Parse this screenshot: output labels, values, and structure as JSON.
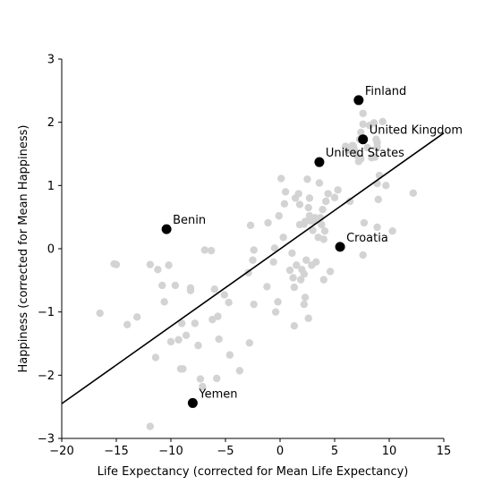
{
  "chart_data": {
    "type": "scatter",
    "title": "",
    "xlabel": "Life Expectancy (corrected for Mean Life Expectancy)",
    "ylabel": "Happiness (corrected for Mean Happiness)",
    "xlim": [
      -20,
      15
    ],
    "ylim": [
      -3,
      3
    ],
    "xticks": [
      -20,
      -15,
      -10,
      -5,
      0,
      5,
      10,
      15
    ],
    "yticks": [
      -3,
      -2,
      -1,
      0,
      1,
      2,
      3
    ],
    "grid": false,
    "colors": {
      "points": "#d3d3d3",
      "highlight": "#000000",
      "line": "#000000"
    },
    "fit_line": {
      "x": [
        -20,
        15
      ],
      "y": [
        -2.45,
        1.83
      ]
    },
    "highlighted": [
      {
        "label": "Finland",
        "x": 7.2,
        "y": 2.35
      },
      {
        "label": "United Kingdom",
        "x": 7.6,
        "y": 1.73
      },
      {
        "label": "United States",
        "x": 3.6,
        "y": 1.37
      },
      {
        "label": "Benin",
        "x": -10.4,
        "y": 0.31
      },
      {
        "label": "Croatia",
        "x": 5.5,
        "y": 0.03
      },
      {
        "label": "Yemen",
        "x": -8.0,
        "y": -2.44
      }
    ],
    "points": [
      [
        -16.5,
        -1.02
      ],
      [
        -15.2,
        -0.24
      ],
      [
        -15.0,
        -0.25
      ],
      [
        -14.0,
        -1.2
      ],
      [
        -13.1,
        -1.08
      ],
      [
        -11.9,
        -0.25
      ],
      [
        -11.9,
        -2.81
      ],
      [
        -11.4,
        -1.72
      ],
      [
        -11.2,
        -0.33
      ],
      [
        -10.8,
        -0.58
      ],
      [
        -10.6,
        -0.84
      ],
      [
        -10.2,
        -0.26
      ],
      [
        -10.0,
        -1.47
      ],
      [
        -9.6,
        -0.58
      ],
      [
        -9.3,
        -1.44
      ],
      [
        -9.1,
        -1.9
      ],
      [
        -9.0,
        -1.18
      ],
      [
        -8.9,
        -1.9
      ],
      [
        -8.6,
        -1.37
      ],
      [
        -8.2,
        -0.62
      ],
      [
        -8.2,
        -0.66
      ],
      [
        -7.8,
        -1.18
      ],
      [
        -7.5,
        -1.53
      ],
      [
        -7.3,
        -2.06
      ],
      [
        -7.1,
        -2.18
      ],
      [
        -6.9,
        -0.02
      ],
      [
        -6.3,
        -0.03
      ],
      [
        -6.2,
        -1.12
      ],
      [
        -6.0,
        -0.64
      ],
      [
        -5.8,
        -2.05
      ],
      [
        -5.7,
        -1.07
      ],
      [
        -5.6,
        -1.43
      ],
      [
        -5.1,
        -0.73
      ],
      [
        -4.7,
        -0.85
      ],
      [
        -4.6,
        -1.68
      ],
      [
        -3.7,
        -1.93
      ],
      [
        -2.9,
        -0.38
      ],
      [
        -2.8,
        -1.49
      ],
      [
        -2.7,
        0.37
      ],
      [
        -2.5,
        -0.18
      ],
      [
        -2.4,
        -0.88
      ],
      [
        -2.4,
        -0.02
      ],
      [
        -1.2,
        -0.6
      ],
      [
        -1.1,
        0.41
      ],
      [
        -0.6,
        -0.21
      ],
      [
        -0.5,
        0.01
      ],
      [
        -0.4,
        -1.0
      ],
      [
        -0.2,
        -0.84
      ],
      [
        -0.1,
        0.52
      ],
      [
        0.1,
        1.11
      ],
      [
        0.3,
        0.18
      ],
      [
        0.4,
        0.71
      ],
      [
        0.5,
        0.9
      ],
      [
        0.9,
        -0.34
      ],
      [
        1.1,
        -0.07
      ],
      [
        1.2,
        -0.46
      ],
      [
        1.3,
        -1.22
      ],
      [
        1.3,
        -0.61
      ],
      [
        1.4,
        0.8
      ],
      [
        1.5,
        -0.26
      ],
      [
        1.7,
        0.87
      ],
      [
        1.8,
        0.38
      ],
      [
        1.8,
        0.7
      ],
      [
        1.9,
        -0.49
      ],
      [
        2.0,
        -0.33
      ],
      [
        2.2,
        -0.4
      ],
      [
        2.2,
        0.39
      ],
      [
        2.2,
        -0.88
      ],
      [
        2.3,
        -0.77
      ],
      [
        2.3,
        0.43
      ],
      [
        2.4,
        -0.18
      ],
      [
        2.5,
        1.1
      ],
      [
        2.6,
        0.65
      ],
      [
        2.6,
        -1.1
      ],
      [
        2.7,
        0.8
      ],
      [
        2.7,
        0.52
      ],
      [
        2.8,
        0.44
      ],
      [
        2.9,
        -0.26
      ],
      [
        3.0,
        0.29
      ],
      [
        3.1,
        0.44
      ],
      [
        3.2,
        0.49
      ],
      [
        3.3,
        -0.21
      ],
      [
        3.5,
        0.18
      ],
      [
        3.6,
        1.04
      ],
      [
        3.7,
        0.49
      ],
      [
        3.8,
        0.38
      ],
      [
        3.9,
        0.62
      ],
      [
        4.0,
        0.15
      ],
      [
        4.0,
        -0.49
      ],
      [
        4.1,
        0.28
      ],
      [
        4.2,
        0.75
      ],
      [
        4.4,
        0.87
      ],
      [
        4.6,
        -0.36
      ],
      [
        5.0,
        0.81
      ],
      [
        5.3,
        0.93
      ],
      [
        6.0,
        1.62
      ],
      [
        6.2,
        1.56
      ],
      [
        6.4,
        0.75
      ],
      [
        6.6,
        1.63
      ],
      [
        6.7,
        1.63
      ],
      [
        6.8,
        1.57
      ],
      [
        7.0,
        1.48
      ],
      [
        7.2,
        1.38
      ],
      [
        7.3,
        1.73
      ],
      [
        7.4,
        1.84
      ],
      [
        7.4,
        1.42
      ],
      [
        7.6,
        2.14
      ],
      [
        7.6,
        1.97
      ],
      [
        7.6,
        -0.1
      ],
      [
        7.7,
        0.41
      ],
      [
        8.0,
        1.6
      ],
      [
        8.2,
        1.95
      ],
      [
        8.4,
        1.44
      ],
      [
        8.6,
        1.99
      ],
      [
        8.7,
        1.45
      ],
      [
        8.8,
        1.73
      ],
      [
        8.9,
        1.68
      ],
      [
        8.9,
        1.61
      ],
      [
        8.9,
        1.03
      ],
      [
        8.9,
        0.34
      ],
      [
        9.0,
        0.78
      ],
      [
        9.1,
        1.16
      ],
      [
        9.4,
        2.01
      ],
      [
        9.7,
        1.0
      ],
      [
        10.3,
        0.28
      ],
      [
        12.2,
        0.88
      ]
    ]
  }
}
